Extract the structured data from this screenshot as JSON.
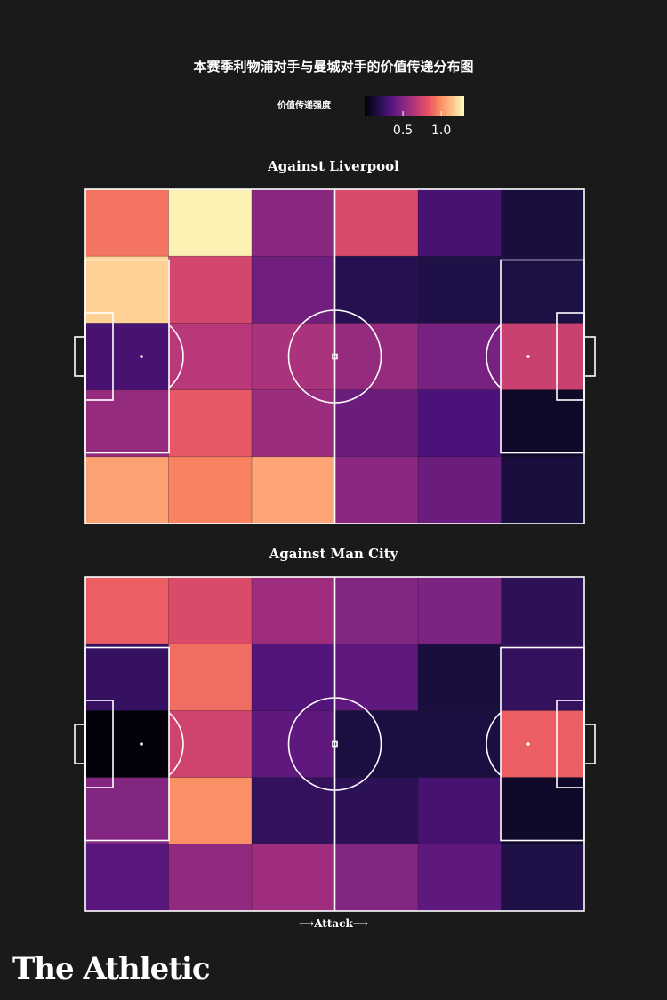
{
  "title": "本赛季利物浦对手与曼城对手的价值传递分布图",
  "legend": {
    "label": "价值传递强度",
    "ticks": [
      {
        "label": "0.5",
        "value": 0.5
      },
      {
        "label": "1.0",
        "value": 1.0
      }
    ],
    "min": 0.0,
    "max": 1.3,
    "colormap": "magma"
  },
  "attack_label": "⟶Attack⟶",
  "brand": "The Athletic",
  "chart_data": [
    {
      "type": "heatmap",
      "title": "Against Liverpool",
      "cols": 6,
      "rows": 5,
      "values": [
        [
          0.92,
          1.27,
          0.52,
          0.78,
          0.3,
          0.15
        ],
        [
          1.18,
          0.76,
          0.44,
          0.2,
          0.18,
          0.17
        ],
        [
          0.3,
          0.66,
          0.62,
          0.55,
          0.46,
          0.72
        ],
        [
          0.55,
          0.84,
          0.57,
          0.42,
          0.32,
          0.1
        ],
        [
          1.05,
          0.96,
          1.06,
          0.52,
          0.42,
          0.15
        ]
      ]
    },
    {
      "type": "heatmap",
      "title": "Against Man City",
      "cols": 6,
      "rows": 5,
      "values": [
        [
          0.86,
          0.78,
          0.58,
          0.5,
          0.48,
          0.22
        ],
        [
          0.25,
          0.9,
          0.34,
          0.38,
          0.15,
          0.24
        ],
        [
          0.02,
          0.74,
          0.38,
          0.16,
          0.16,
          0.86
        ],
        [
          0.5,
          1.0,
          0.24,
          0.22,
          0.3,
          0.1
        ],
        [
          0.36,
          0.54,
          0.58,
          0.5,
          0.38,
          0.18
        ]
      ]
    }
  ]
}
